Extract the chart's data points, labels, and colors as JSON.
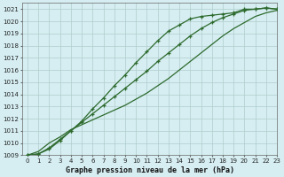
{
  "title": "Graphe pression niveau de la mer (hPa)",
  "bg_color": "#d6eef2",
  "grid_color": "#b0cccc",
  "line_color": "#2d6a2d",
  "xlim": [
    -0.5,
    23
  ],
  "ylim": [
    1009,
    1021.5
  ],
  "xticks": [
    0,
    1,
    2,
    3,
    4,
    5,
    6,
    7,
    8,
    9,
    10,
    11,
    12,
    13,
    14,
    15,
    16,
    17,
    18,
    19,
    20,
    21,
    22,
    23
  ],
  "yticks": [
    1009,
    1010,
    1011,
    1012,
    1013,
    1014,
    1015,
    1016,
    1017,
    1018,
    1019,
    1020,
    1021
  ],
  "series1_x": [
    0,
    1,
    2,
    3,
    4,
    5,
    6,
    7,
    8,
    9,
    10,
    11,
    12,
    13,
    14,
    15,
    16,
    17,
    18,
    19,
    20,
    21,
    22,
    23
  ],
  "series1_y": [
    1009.0,
    1009.1,
    1009.5,
    1010.2,
    1011.0,
    1011.8,
    1012.8,
    1013.7,
    1014.7,
    1015.6,
    1016.6,
    1017.5,
    1018.4,
    1019.2,
    1019.7,
    1020.2,
    1020.4,
    1020.5,
    1020.6,
    1020.7,
    1021.0,
    1021.0,
    1021.1,
    1021.0
  ],
  "series2_x": [
    0,
    1,
    2,
    3,
    4,
    5,
    6,
    7,
    8,
    9,
    10,
    11,
    12,
    13,
    14,
    15,
    16,
    17,
    18,
    19,
    20,
    21,
    22,
    23
  ],
  "series2_y": [
    1009.0,
    1009.3,
    1010.0,
    1010.5,
    1011.1,
    1011.5,
    1011.9,
    1012.3,
    1012.7,
    1013.1,
    1013.6,
    1014.1,
    1014.7,
    1015.3,
    1016.0,
    1016.7,
    1017.4,
    1018.1,
    1018.8,
    1019.4,
    1019.9,
    1020.4,
    1020.7,
    1020.9
  ],
  "series3_x": [
    0,
    1,
    2,
    3,
    4,
    5,
    6,
    7,
    8,
    9,
    10,
    11,
    12,
    13,
    14,
    15,
    16,
    17,
    18,
    19,
    20,
    21,
    22,
    23
  ],
  "series3_y": [
    1009.0,
    1009.1,
    1009.6,
    1010.3,
    1011.0,
    1011.7,
    1012.4,
    1013.1,
    1013.8,
    1014.5,
    1015.2,
    1015.9,
    1016.7,
    1017.4,
    1018.1,
    1018.8,
    1019.4,
    1019.9,
    1020.3,
    1020.6,
    1020.9,
    1021.0,
    1021.1,
    1021.0
  ],
  "ylabel_fontsize": 5.5,
  "xlabel_fontsize": 6.0,
  "tick_fontsize": 5.0
}
